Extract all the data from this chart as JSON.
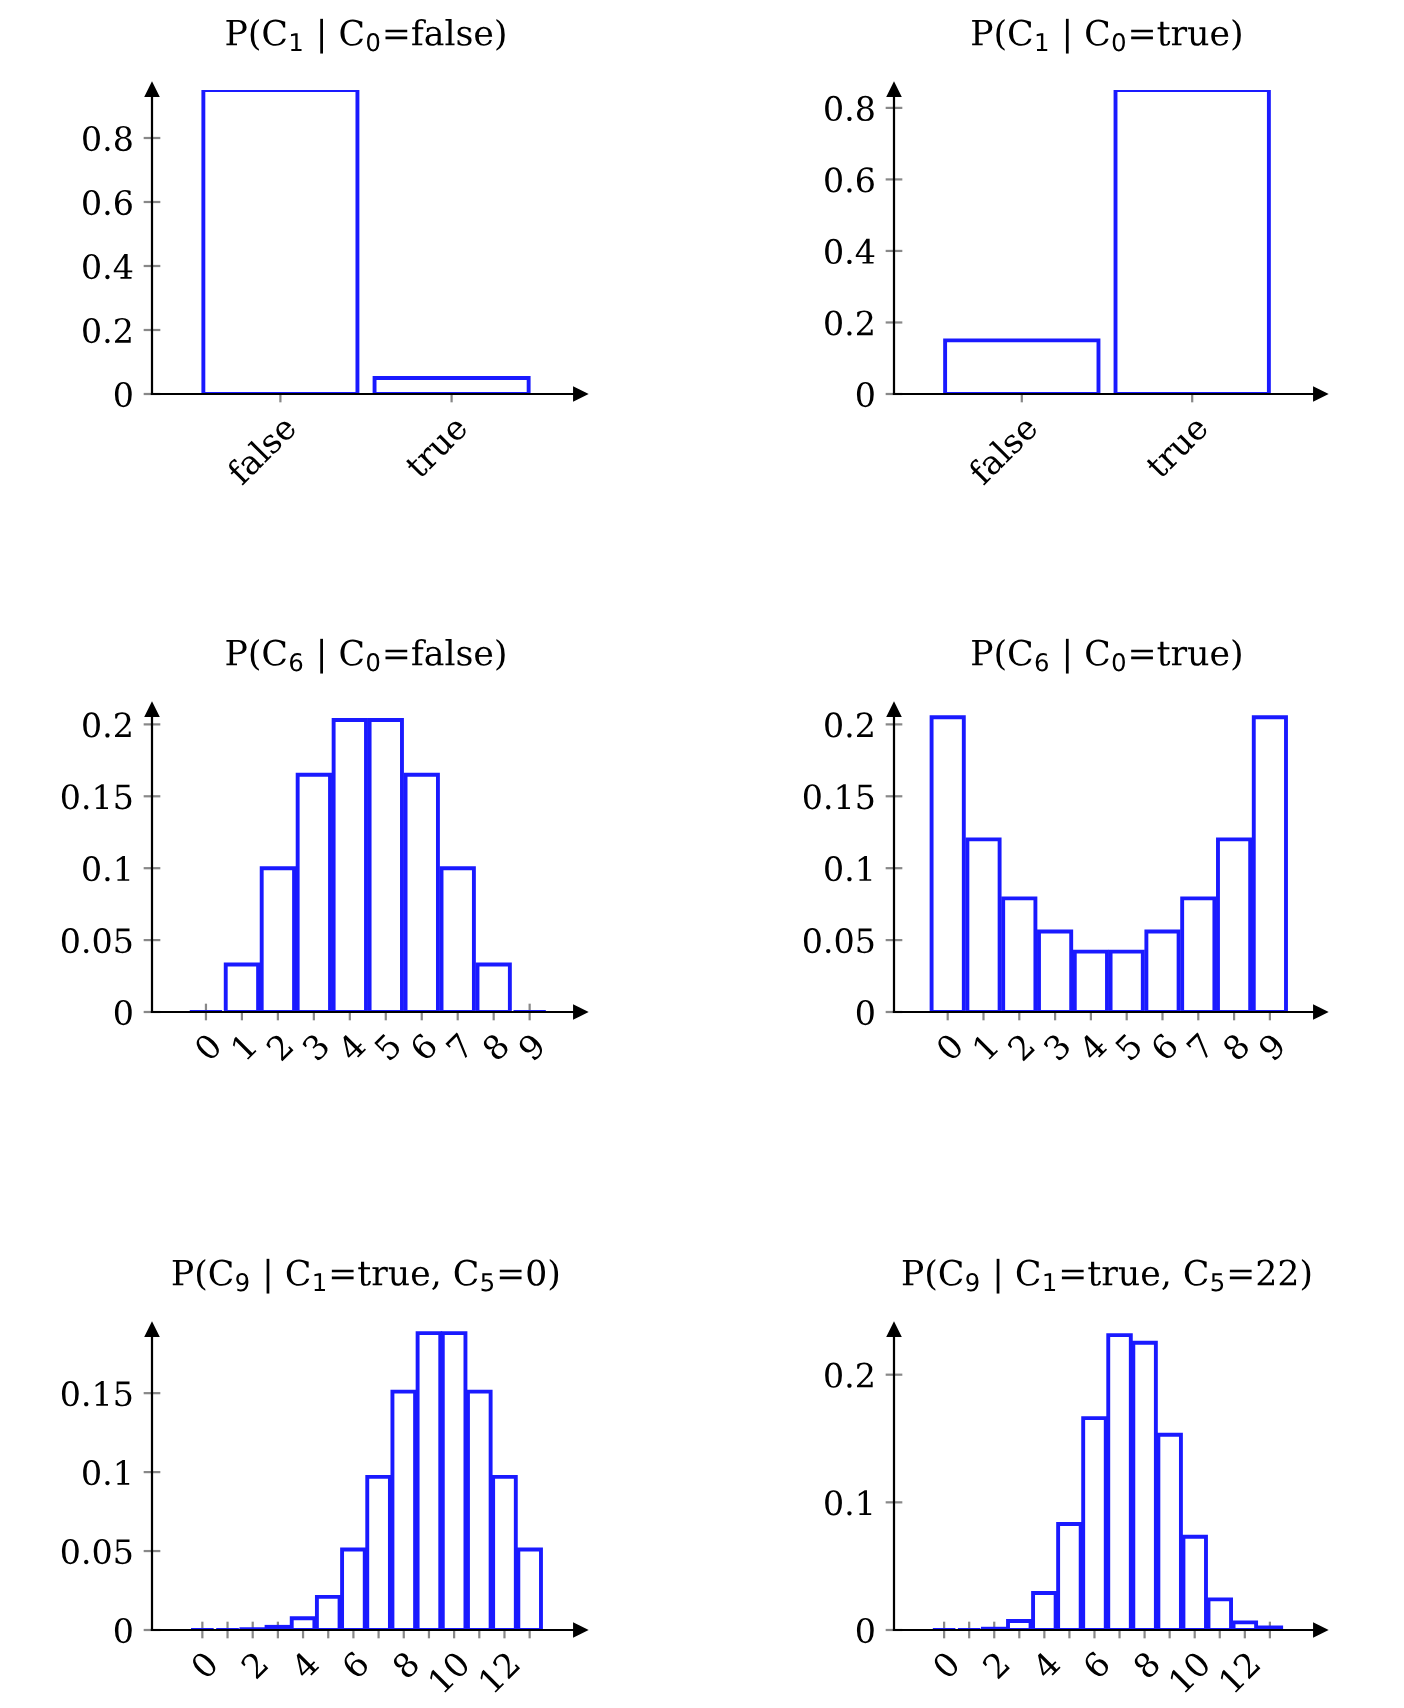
{
  "chart_data": [
    {
      "type": "bar",
      "title": "P(C$_{1}$ | C$_{0}$=false)",
      "categories": [
        "false",
        "true"
      ],
      "values": [
        0.95,
        0.05
      ],
      "color": "#1a1aff",
      "ylim": [
        0,
        0.95
      ],
      "yticks": [
        0,
        0.2,
        0.4,
        0.6,
        0.8
      ],
      "grid": false
    },
    {
      "type": "bar",
      "title": "P(C$_{1}$ | C$_{0}$=true)",
      "categories": [
        "false",
        "true"
      ],
      "values": [
        0.15,
        0.85
      ],
      "color": "#1a1aff",
      "ylim": [
        0,
        0.85
      ],
      "yticks": [
        0,
        0.2,
        0.4,
        0.6,
        0.8
      ],
      "grid": false
    },
    {
      "type": "bar",
      "title": "P(C$_{6}$ | C$_{0}$=false)",
      "x": [
        0,
        1,
        2,
        3,
        4,
        5,
        6,
        7,
        8,
        9
      ],
      "values": [
        0,
        0.033,
        0.1,
        0.165,
        0.203,
        0.203,
        0.165,
        0.1,
        0.033,
        0
      ],
      "color": "#1a1aff",
      "xlim": [
        -1.5,
        10.4
      ],
      "xticks": [
        0,
        1,
        2,
        3,
        4,
        5,
        6,
        7,
        8,
        9
      ],
      "ylim": [
        0,
        0.21
      ],
      "yticks": [
        0,
        0.05,
        0.1,
        0.15,
        0.2
      ],
      "grid": false
    },
    {
      "type": "bar",
      "title": "P(C$_{6}$ | C$_{0}$=true)",
      "x": [
        0,
        1,
        2,
        3,
        4,
        5,
        6,
        7,
        8,
        9
      ],
      "values": [
        0.205,
        0.12,
        0.079,
        0.056,
        0.042,
        0.042,
        0.056,
        0.079,
        0.12,
        0.205
      ],
      "color": "#1a1aff",
      "xlim": [
        -1.5,
        10.4
      ],
      "xticks": [
        0,
        1,
        2,
        3,
        4,
        5,
        6,
        7,
        8,
        9
      ],
      "ylim": [
        0,
        0.21
      ],
      "yticks": [
        0,
        0.05,
        0.1,
        0.15,
        0.2
      ],
      "grid": false
    },
    {
      "type": "bar",
      "title": "P(C$_{9}$ | C$_{1}$=true, C$_{5}$=0)",
      "x": [
        0,
        1,
        2,
        3,
        4,
        5,
        6,
        7,
        8,
        9,
        10,
        11,
        12,
        13
      ],
      "values": [
        0,
        0,
        0.0005,
        0.002,
        0.0074,
        0.021,
        0.051,
        0.097,
        0.151,
        0.188,
        0.188,
        0.151,
        0.097,
        0.051
      ],
      "color": "#1a1aff",
      "xlim": [
        -2,
        15
      ],
      "xticks": [
        0,
        {
          "value": 1,
          "label": null
        },
        2,
        {
          "value": 3,
          "label": null
        },
        4,
        {
          "value": 5,
          "label": null
        },
        6,
        {
          "value": 7,
          "label": null
        },
        8,
        {
          "value": 9,
          "label": null
        },
        10,
        {
          "value": 11,
          "label": null
        },
        12,
        {
          "value": 13,
          "label": null
        }
      ],
      "ylim": [
        0,
        0.19
      ],
      "yticks": [
        0,
        0.05,
        0.1,
        0.15
      ],
      "grid": false
    },
    {
      "type": "bar",
      "title": "P(C$_{9}$ | C$_{1}$=true, C$_{5}$=22)",
      "x": [
        0,
        1,
        2,
        3,
        4,
        5,
        6,
        7,
        8,
        9,
        10,
        11,
        12,
        13
      ],
      "values": [
        0,
        0,
        0.001,
        0.007,
        0.029,
        0.083,
        0.166,
        0.231,
        0.225,
        0.153,
        0.073,
        0.024,
        0.006,
        0.002
      ],
      "color": "#1a1aff",
      "xlim": [
        -2,
        15
      ],
      "xticks": [
        0,
        {
          "value": 1,
          "label": null
        },
        2,
        {
          "value": 3,
          "label": null
        },
        4,
        {
          "value": 5,
          "label": null
        },
        6,
        {
          "value": 7,
          "label": null
        },
        8,
        {
          "value": 9,
          "label": null
        },
        10,
        {
          "value": 11,
          "label": null
        },
        12,
        {
          "value": 13,
          "label": null
        }
      ],
      "ylim": [
        0,
        0.235
      ],
      "yticks": [
        0,
        0.1,
        0.2
      ],
      "grid": false
    }
  ]
}
